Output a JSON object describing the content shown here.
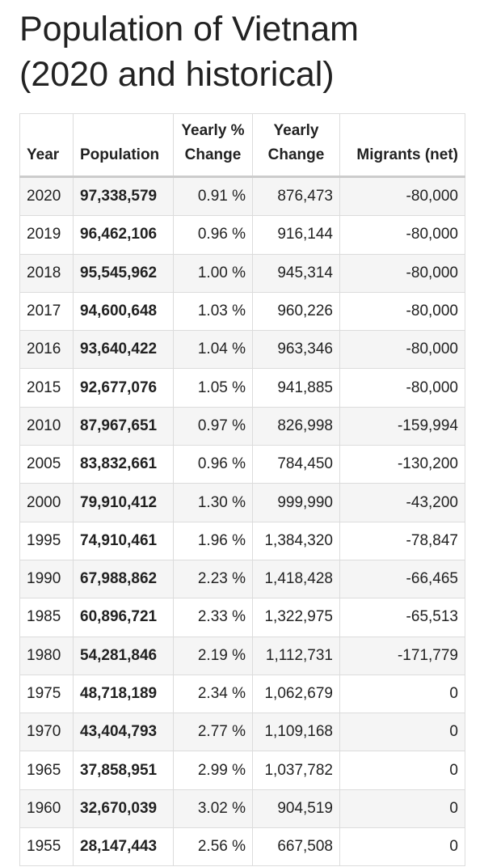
{
  "title": "Population of Vietnam (2020 and historical)",
  "table": {
    "header": [
      "Year",
      "Population",
      "Yearly % Change",
      "Yearly Change",
      "Migrants (net)"
    ],
    "rows": [
      [
        "2020",
        "97,338,579",
        "0.91 %",
        "876,473",
        "-80,000"
      ],
      [
        "2019",
        "96,462,106",
        "0.96 %",
        "916,144",
        "-80,000"
      ],
      [
        "2018",
        "95,545,962",
        "1.00 %",
        "945,314",
        "-80,000"
      ],
      [
        "2017",
        "94,600,648",
        "1.03 %",
        "960,226",
        "-80,000"
      ],
      [
        "2016",
        "93,640,422",
        "1.04 %",
        "963,346",
        "-80,000"
      ],
      [
        "2015",
        "92,677,076",
        "1.05 %",
        "941,885",
        "-80,000"
      ],
      [
        "2010",
        "87,967,651",
        "0.97 %",
        "826,998",
        "-159,994"
      ],
      [
        "2005",
        "83,832,661",
        "0.96 %",
        "784,450",
        "-130,200"
      ],
      [
        "2000",
        "79,910,412",
        "1.30 %",
        "999,990",
        "-43,200"
      ],
      [
        "1995",
        "74,910,461",
        "1.96 %",
        "1,384,320",
        "-78,847"
      ],
      [
        "1990",
        "67,988,862",
        "2.23 %",
        "1,418,428",
        "-66,465"
      ],
      [
        "1985",
        "60,896,721",
        "2.33 %",
        "1,322,975",
        "-65,513"
      ],
      [
        "1980",
        "54,281,846",
        "2.19 %",
        "1,112,731",
        "-171,779"
      ],
      [
        "1975",
        "48,718,189",
        "2.34 %",
        "1,062,679",
        "0"
      ],
      [
        "1970",
        "43,404,793",
        "2.77 %",
        "1,109,168",
        "0"
      ],
      [
        "1965",
        "37,858,951",
        "2.99 %",
        "1,037,782",
        "0"
      ],
      [
        "1960",
        "32,670,039",
        "3.02 %",
        "904,519",
        "0"
      ],
      [
        "1955",
        "28,147,443",
        "2.56 %",
        "667,508",
        "0"
      ]
    ]
  }
}
